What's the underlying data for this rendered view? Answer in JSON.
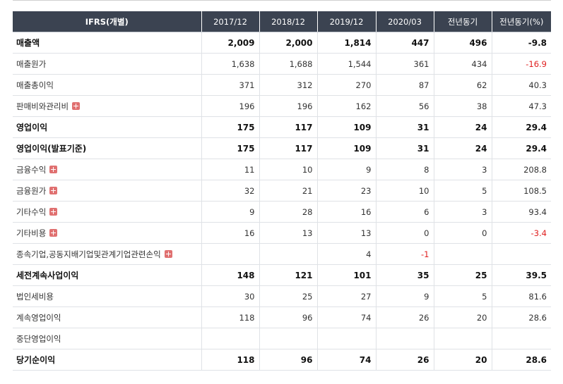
{
  "header": {
    "label": "IFRS(개별)",
    "cols": [
      "2017/12",
      "2018/12",
      "2019/12",
      "2020/03",
      "전년동기",
      "전년동기(%)"
    ]
  },
  "rows": [
    {
      "label": "매출액",
      "bold": true,
      "plus": false,
      "v": [
        "2,009",
        "2,000",
        "1,814",
        "447",
        "496",
        "-9.8"
      ],
      "neg": [
        false,
        false,
        false,
        false,
        false,
        true
      ]
    },
    {
      "label": "매출원가",
      "bold": false,
      "plus": false,
      "v": [
        "1,638",
        "1,688",
        "1,544",
        "361",
        "434",
        "-16.9"
      ],
      "neg": [
        false,
        false,
        false,
        false,
        false,
        true
      ]
    },
    {
      "label": "매출총이익",
      "bold": false,
      "plus": false,
      "v": [
        "371",
        "312",
        "270",
        "87",
        "62",
        "40.3"
      ],
      "neg": [
        false,
        false,
        false,
        false,
        false,
        false
      ]
    },
    {
      "label": "판매비와관리비",
      "bold": false,
      "plus": true,
      "v": [
        "196",
        "196",
        "162",
        "56",
        "38",
        "47.3"
      ],
      "neg": [
        false,
        false,
        false,
        false,
        false,
        false
      ]
    },
    {
      "label": "영업이익",
      "bold": true,
      "plus": false,
      "v": [
        "175",
        "117",
        "109",
        "31",
        "24",
        "29.4"
      ],
      "neg": [
        false,
        false,
        false,
        false,
        false,
        false
      ]
    },
    {
      "label": "영업이익(발표기준)",
      "bold": true,
      "plus": false,
      "v": [
        "175",
        "117",
        "109",
        "31",
        "24",
        "29.4"
      ],
      "neg": [
        false,
        false,
        false,
        false,
        false,
        false
      ]
    },
    {
      "label": "금융수익",
      "bold": false,
      "plus": true,
      "v": [
        "11",
        "10",
        "9",
        "8",
        "3",
        "208.8"
      ],
      "neg": [
        false,
        false,
        false,
        false,
        false,
        false
      ]
    },
    {
      "label": "금융원가",
      "bold": false,
      "plus": true,
      "v": [
        "32",
        "21",
        "23",
        "10",
        "5",
        "108.5"
      ],
      "neg": [
        false,
        false,
        false,
        false,
        false,
        false
      ]
    },
    {
      "label": "기타수익",
      "bold": false,
      "plus": true,
      "v": [
        "9",
        "28",
        "16",
        "6",
        "3",
        "93.4"
      ],
      "neg": [
        false,
        false,
        false,
        false,
        false,
        false
      ]
    },
    {
      "label": "기타비용",
      "bold": false,
      "plus": true,
      "v": [
        "16",
        "13",
        "13",
        "0",
        "0",
        "-3.4"
      ],
      "neg": [
        false,
        false,
        false,
        false,
        false,
        true
      ]
    },
    {
      "label": "종속기업,공동지배기업및관계기업관련손익",
      "bold": false,
      "plus": true,
      "v": [
        "",
        "",
        "4",
        "-1",
        "",
        ""
      ],
      "neg": [
        false,
        false,
        false,
        true,
        false,
        false
      ]
    },
    {
      "label": "세전계속사업이익",
      "bold": true,
      "plus": false,
      "v": [
        "148",
        "121",
        "101",
        "35",
        "25",
        "39.5"
      ],
      "neg": [
        false,
        false,
        false,
        false,
        false,
        false
      ]
    },
    {
      "label": "법인세비용",
      "bold": false,
      "plus": false,
      "v": [
        "30",
        "25",
        "27",
        "9",
        "5",
        "81.6"
      ],
      "neg": [
        false,
        false,
        false,
        false,
        false,
        false
      ]
    },
    {
      "label": "계속영업이익",
      "bold": false,
      "plus": false,
      "v": [
        "118",
        "96",
        "74",
        "26",
        "20",
        "28.6"
      ],
      "neg": [
        false,
        false,
        false,
        false,
        false,
        false
      ]
    },
    {
      "label": "중단영업이익",
      "bold": false,
      "plus": false,
      "v": [
        "",
        "",
        "",
        "",
        "",
        ""
      ],
      "neg": [
        false,
        false,
        false,
        false,
        false,
        false
      ]
    },
    {
      "label": "당기순이익",
      "bold": true,
      "plus": false,
      "v": [
        "118",
        "96",
        "74",
        "26",
        "20",
        "28.6"
      ],
      "neg": [
        false,
        false,
        false,
        false,
        false,
        false
      ]
    }
  ]
}
